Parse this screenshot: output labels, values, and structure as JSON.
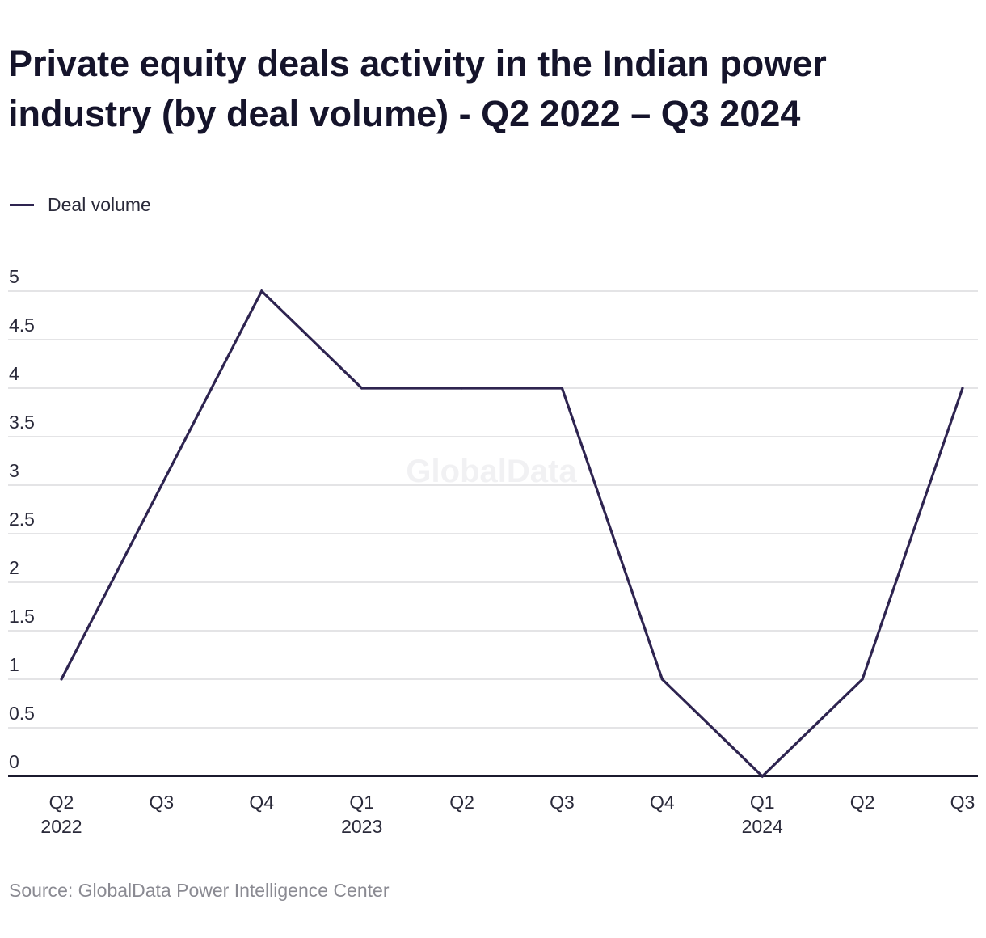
{
  "chart_data": {
    "type": "line",
    "title": "Private equity deals activity in the Indian power industry (by deal volume) - Q2 2022 – Q3 2024",
    "categories": [
      "Q2|2022",
      "Q3|",
      "Q4|",
      "Q1|2023",
      "Q2|",
      "Q3|",
      "Q4|",
      "Q1|2024",
      "Q2|",
      "Q3|"
    ],
    "series": [
      {
        "name": "Deal volume",
        "values": [
          1,
          3,
          5,
          4,
          4,
          4,
          1,
          0,
          1,
          4
        ],
        "color": "#2e2450"
      }
    ],
    "yticks": [
      "0",
      "0.5",
      "1",
      "1.5",
      "2",
      "2.5",
      "3",
      "3.5",
      "4",
      "4.5",
      "5"
    ],
    "ylim": [
      0,
      5
    ],
    "xlabel": "",
    "ylabel": "",
    "grid": true,
    "legend": "top-left",
    "watermark": "GlobalData",
    "source": "Source: GlobalData Power Intelligence Center"
  }
}
